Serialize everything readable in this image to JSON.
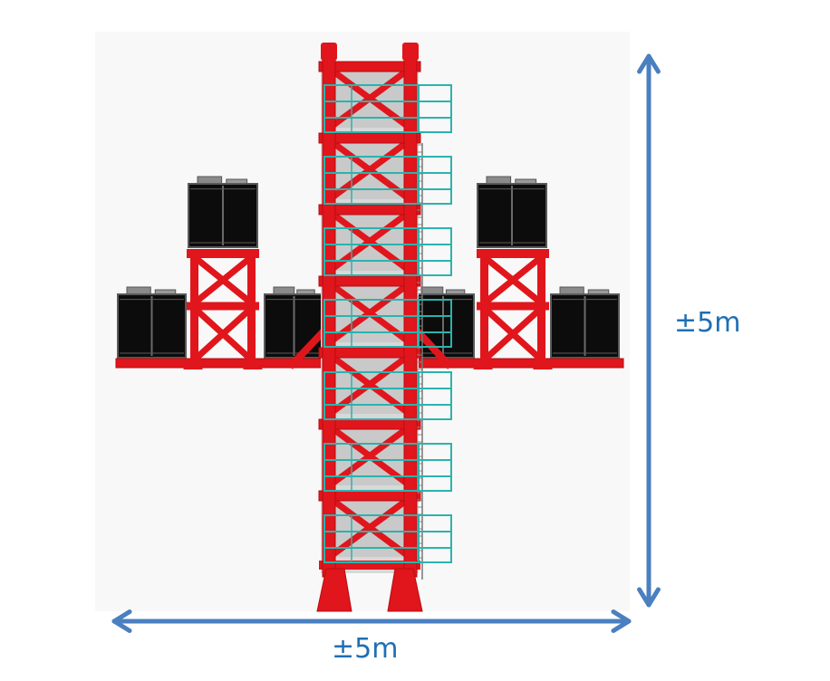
{
  "dimensions": {
    "vertical_label": "±5m",
    "horizontal_label": "±5m"
  },
  "colors": {
    "frame": "#e0161c",
    "frame_dark": "#b50d12",
    "module": "#0c0c0c",
    "module_top": "#8a8a8a",
    "platform": "#2bb3ad",
    "arrow": "#4a7fc0",
    "label": "#1f6fb3",
    "background_panel": "#f7f7f7"
  },
  "icons": {
    "central_tower": "red-lattice-tower",
    "platforms": "teal-platform",
    "modules": "black-equipment-box",
    "dimension_arrows": "double-headed-arrow"
  }
}
